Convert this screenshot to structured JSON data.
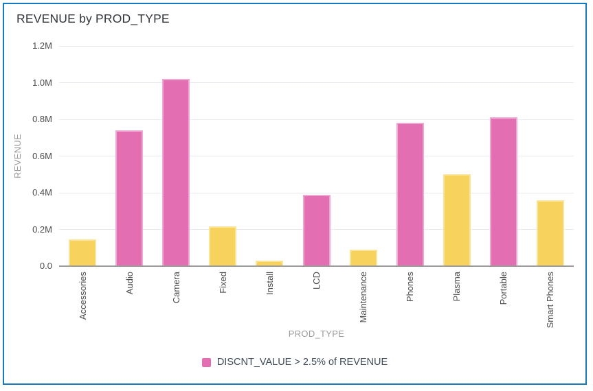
{
  "chart_data": {
    "type": "bar",
    "title": "REVENUE by PROD_TYPE",
    "xlabel": "PROD_TYPE",
    "ylabel": "REVENUE",
    "categories": [
      "Accessories",
      "Audio",
      "Camera",
      "Fixed",
      "Install",
      "LCD",
      "Maintenance",
      "Phones",
      "Plasma",
      "Portable",
      "Smart Phones"
    ],
    "values": [
      145000,
      740000,
      1020000,
      215000,
      30000,
      390000,
      90000,
      780000,
      500000,
      810000,
      360000
    ],
    "highlighted": [
      false,
      true,
      true,
      false,
      false,
      true,
      false,
      true,
      false,
      true,
      false
    ],
    "ylim": [
      0,
      1200000
    ],
    "ytick_labels": [
      "0.0",
      "0.2M",
      "0.4M",
      "0.6M",
      "0.8M",
      "1.0M",
      "1.2M"
    ],
    "grid": "horizontal",
    "legend_position": "bottom-center",
    "legend": [
      {
        "label": "DISCNT_VALUE > 2.5% of REVENUE",
        "color": "#e36fb2"
      }
    ]
  },
  "colors": {
    "highlight_bar": "#e36fb2",
    "highlight_bar_border": "#efa8d3",
    "default_bar": "#f7d35e",
    "default_bar_border": "#fae49a",
    "widget_border": "#1779bd",
    "gridline": "#e9e9ef",
    "axis_line": "#9c9c9c",
    "tick_text": "#4a4a4a",
    "axis_title_text": "#9b9b9b",
    "title_text": "#30343a",
    "legend_text": "#3e4b57",
    "background": "#ffffff"
  }
}
